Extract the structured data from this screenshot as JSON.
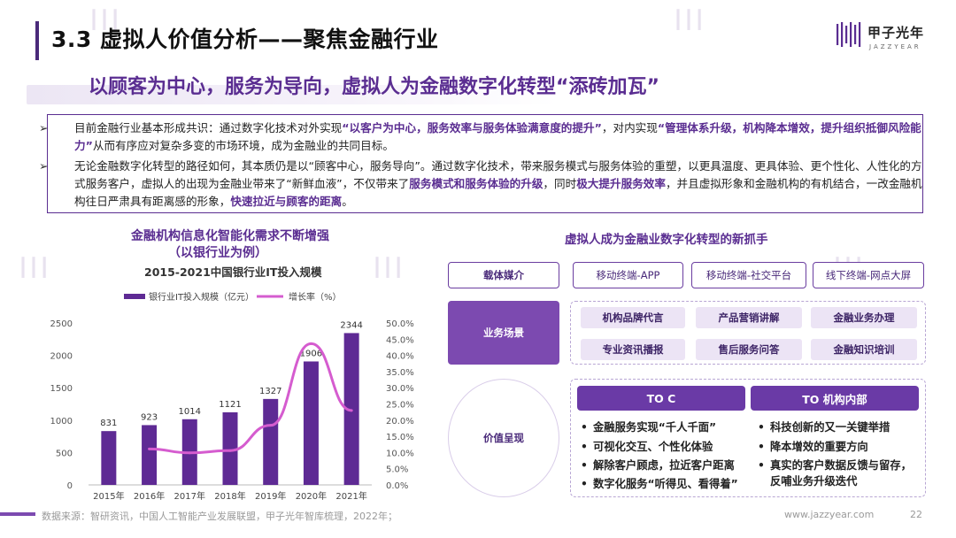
{
  "header": {
    "title": "3.3 虚拟人价值分析——聚焦金融行业",
    "logo_text": "甲子光年",
    "logo_sub": "JAZZYEAR"
  },
  "subtitle": "以顾客为中心，服务为导向，虚拟人为金融数字化转型“添砖加瓦”",
  "textbox": {
    "p1": {
      "arrow": "➢",
      "t1": "目前金融行业基本形成共识：通过数字化技术对外实现",
      "h1": "“以客户为中心，服务效率与服务体验满意度的提升”",
      "t2": "，对内实现",
      "h2": "“管理体系升级，机构降本增效，提升组织抵御风险能力”",
      "t3": "从而有序应对复杂多变的市场环境，成为金融业的共同目标。"
    },
    "p2": {
      "arrow": "➢",
      "t1": "无论金融数字化转型的路径如何，其本质仍是以“顾客中心，服务导向”。通过数字化技术，带来服务模式与服务体验的重塑，以更具温度、更具体验、更个性化、人性化的方式服务客户，虚拟人的出现为金融业带来了“新鲜血液”，不仅带来了",
      "h1": "服务模式和服务体验的升级",
      "t2": "，同时",
      "h2": "极大提升服务效率",
      "t3": "，并且虚拟形象和金融机构的有机结合，一改金融机构往日严肃具有距离感的形象，",
      "h3": "快速拉近与顾客的距离",
      "t4": "。"
    }
  },
  "chart_heading": {
    "line1": "金融机构信息化智能化需求不断增强",
    "line2": "（以银行业为例）",
    "chart_title": "2015-2021中国银行业IT投入规模"
  },
  "chart_data": {
    "type": "bar",
    "title": "2015-2021中国银行业IT投入规模",
    "categories": [
      "2015年",
      "2016年",
      "2017年",
      "2018年",
      "2019年",
      "2020年",
      "2021年"
    ],
    "series": [
      {
        "name": "银行业IT投入规模（亿元）",
        "type": "bar",
        "axis": "left",
        "values": [
          831,
          923,
          1014,
          1121,
          1327,
          1906,
          2344
        ],
        "color": "#5e2a94"
      },
      {
        "name": "增长率（%）",
        "type": "line",
        "axis": "right",
        "values": [
          null,
          11.1,
          9.9,
          10.6,
          18.4,
          43.6,
          23.0
        ],
        "color": "#d55ccf"
      }
    ],
    "ylim_left": [
      0,
      2500
    ],
    "yticks_left": [
      0,
      500,
      1000,
      1500,
      2000,
      2500
    ],
    "ylim_right": [
      0,
      50
    ],
    "yticks_right": [
      "0.0%",
      "5.0%",
      "10.0%",
      "15.0%",
      "20.0%",
      "25.0%",
      "30.0%",
      "35.0%",
      "40.0%",
      "45.0%",
      "50.0%"
    ],
    "legend": "top",
    "grid": false
  },
  "diagram": {
    "title": "虚拟人成为金融业数字化转型的新抓手",
    "carrier_label": "载体媒介",
    "carriers": [
      "移动终端-APP",
      "移动终端-社交平台",
      "线下终端-网点大屏"
    ],
    "scenario_label": "业务场景",
    "scenarios": [
      "机构品牌代言",
      "产品营销讲解",
      "金融业务办理",
      "专业资讯播报",
      "售后服务问答",
      "金融知识培训"
    ],
    "value_label": "价值呈现",
    "toc": "TO C",
    "tob": "TO 机构内部",
    "toc_items": [
      "金融服务实现“千人千面”",
      "可视化交互、个性化体验",
      "解除客户顾虑，拉近客户距离",
      "数字化服务“听得见、看得着”"
    ],
    "tob_items": [
      "科技创新的又一关键举措",
      "降本增效的重要方向",
      "真实的客户数据反馈与留存，",
      "反哺业务升级迭代"
    ]
  },
  "footer": {
    "source": "数据来源：智研资讯，中国人工智能产业发展联盟，甲子光年智库梳理，2022年；",
    "url": "www.jazzyear.com",
    "page": "22"
  },
  "colors": {
    "accent": "#5a2d91",
    "bar": "#5e2a94",
    "line": "#d55ccf"
  }
}
